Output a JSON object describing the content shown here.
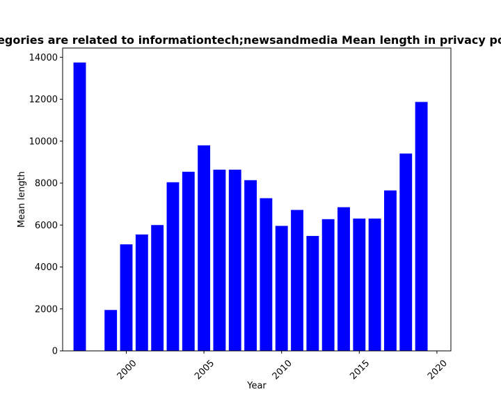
{
  "chart_data": {
    "type": "bar",
    "title": "Categories are related to informationtech;newsandmedia Mean length in privacy policies",
    "xlabel": "Year",
    "ylabel": "Mean length",
    "x": [
      1997,
      1999,
      2000,
      2001,
      2002,
      2003,
      2004,
      2005,
      2006,
      2007,
      2008,
      2009,
      2010,
      2011,
      2012,
      2013,
      2014,
      2015,
      2016,
      2017,
      2018,
      2019
    ],
    "values": [
      13750,
      1950,
      5080,
      5550,
      6000,
      8040,
      8540,
      9800,
      8640,
      8640,
      8140,
      7280,
      5960,
      6720,
      5480,
      6280,
      6850,
      6310,
      6310,
      7650,
      9410,
      11870
    ],
    "xlim": [
      1995.9,
      2020.9
    ],
    "ylim": [
      0,
      14440
    ],
    "xticks": [
      2000,
      2005,
      2010,
      2015,
      2020
    ],
    "yticks": [
      0,
      2000,
      4000,
      6000,
      8000,
      10000,
      12000,
      14000
    ],
    "bar_color": "#0000ff",
    "grid": false,
    "legend": false
  }
}
